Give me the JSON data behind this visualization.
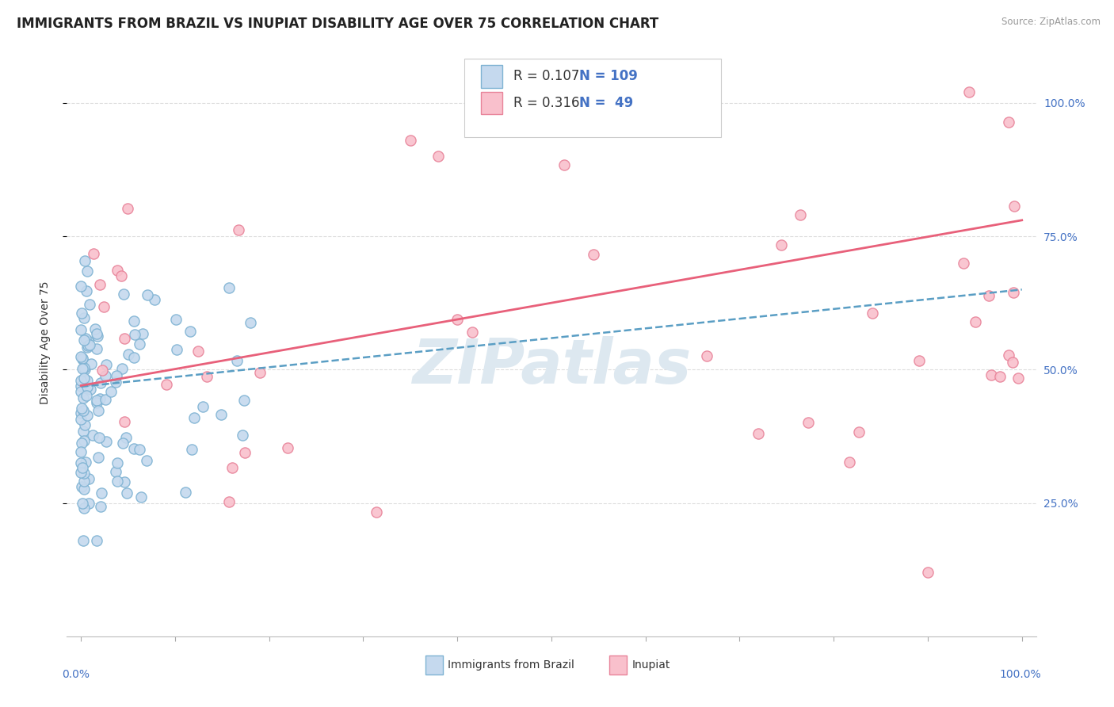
{
  "title": "IMMIGRANTS FROM BRAZIL VS INUPIAT DISABILITY AGE OVER 75 CORRELATION CHART",
  "source": "Source: ZipAtlas.com",
  "ylabel": "Disability Age Over 75",
  "legend_label1": "Immigrants from Brazil",
  "legend_label2": "Inupiat",
  "R1": 0.107,
  "N1": 109,
  "R2": 0.316,
  "N2": 49,
  "ytick_values": [
    0.25,
    0.5,
    0.75,
    1.0
  ],
  "ytick_labels": [
    "25.0%",
    "50.0%",
    "75.0%",
    "100.0%"
  ],
  "color_brazil_fill": "#c5d9ee",
  "color_brazil_edge": "#7fb3d3",
  "color_brazil_line": "#5a9ec4",
  "color_inupiat_fill": "#f9c0cc",
  "color_inupiat_edge": "#e8849a",
  "color_inupiat_line": "#e8607a",
  "color_right_ticks": "#4472c4",
  "color_grid": "#dddddd",
  "background_color": "#ffffff",
  "watermark_color": "#dde8f0",
  "title_fontsize": 12,
  "axis_label_fontsize": 10,
  "tick_label_fontsize": 10,
  "legend_fontsize": 12
}
